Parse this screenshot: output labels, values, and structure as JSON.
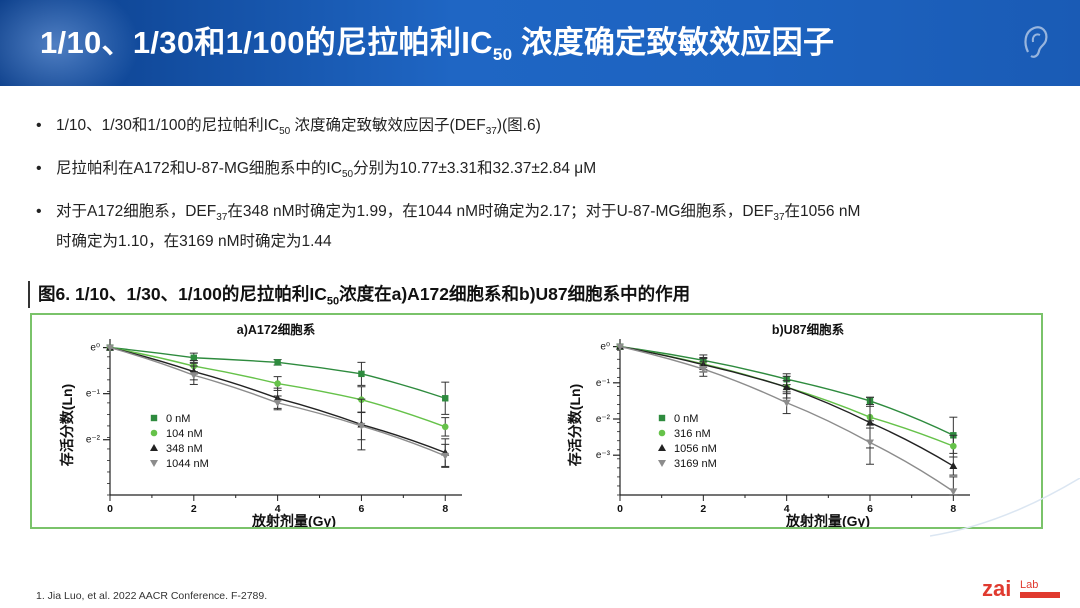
{
  "header": {
    "title_main": "1/10、1/30和1/100的尼拉帕利IC",
    "title_sub": "50",
    "title_rest": " 浓度确定致敏效应因子"
  },
  "bullets": [
    {
      "a": "1/10、1/30和1/100的尼拉帕利IC",
      "a_sub": "50",
      "b": " 浓度确定致敏效应因子(DEF",
      "b_sub": "37",
      "c": ")(图.6)"
    },
    {
      "a": "尼拉帕利在A172和U-87-MG细胞系中的IC",
      "a_sub": "50",
      "b": "分别为10.77±3.31和32.37±2.84 μM"
    },
    {
      "a": "对于A172细胞系，DEF",
      "a_sub": "37",
      "b": "在348 nM时确定为1.99，在1044 nM时确定为2.17；对于U-87-MG细胞系，DEF",
      "b_sub": "37",
      "c": "在1056 nM",
      "d": "时确定为1.10，在3169 nM时确定为1.44"
    }
  ],
  "figure": {
    "caption_a": "图6. 1/10、1/30、1/100的尼拉帕利IC",
    "caption_sub": "50",
    "caption_b": "浓度在a)A172细胞系和b)U87细胞系中的作用"
  },
  "footnote": "1.   Jia Luo, et al. 2022 AACR Conference. F-2789.",
  "logo": {
    "text": "zai",
    "text_small": "Lab"
  },
  "colors": {
    "green_dark": "#2e8b3e",
    "green_light": "#66c24a",
    "black": "#222222",
    "gray": "#8c8c8c",
    "header_blue": "#1f66c4",
    "logo_red": "#e03a2f"
  },
  "chart_data": [
    {
      "type": "line",
      "title": "a)A172细胞系",
      "xlabel": "放射剂量(Gy)",
      "ylabel": "存活分数(Ln)",
      "y_scale": "ln",
      "x_ticks": [
        0,
        2,
        4,
        6,
        8
      ],
      "y_ticks": [
        {
          "v": 0,
          "label": "e⁰"
        },
        {
          "v": -1,
          "label": "e⁻¹"
        },
        {
          "v": -2,
          "label": "e⁻²"
        }
      ],
      "xlim": [
        0,
        8.4
      ],
      "ylim": [
        -3.2,
        0.1
      ],
      "legend_position": "bottom-left",
      "series": [
        {
          "name": "0 nM",
          "marker": "square",
          "color_key": "green_dark",
          "x": [
            0,
            2,
            4,
            6,
            8
          ],
          "y": [
            0,
            -0.22,
            -0.32,
            -0.57,
            -1.1
          ],
          "err": [
            0,
            0.1,
            0.06,
            0.25,
            0.35
          ]
        },
        {
          "name": "104 nM",
          "marker": "circle",
          "color_key": "green_light",
          "x": [
            0,
            2,
            4,
            6,
            8
          ],
          "y": [
            0,
            -0.4,
            -0.78,
            -1.13,
            -1.72
          ],
          "err": [
            0,
            0.12,
            0.15,
            0.28,
            0.2
          ]
        },
        {
          "name": "348 nM",
          "marker": "triangle",
          "color_key": "black",
          "x": [
            0,
            2,
            4,
            6,
            8
          ],
          "y": [
            0,
            -0.52,
            -1.1,
            -1.67,
            -2.28
          ],
          "err": [
            0,
            0.18,
            0.22,
            0.55,
            0.3
          ]
        },
        {
          "name": "1044 nM",
          "marker": "triangle-down",
          "color_key": "gray",
          "x": [
            0,
            2,
            4,
            6,
            8
          ],
          "y": [
            0,
            -0.6,
            -1.2,
            -1.7,
            -2.35
          ],
          "err": [
            0,
            0.2,
            0.15,
            0.3,
            0.25
          ]
        }
      ]
    },
    {
      "type": "line",
      "title": "b)U87细胞系",
      "xlabel": "放射剂量(Gy)",
      "ylabel": "存活分数(Ln)",
      "y_scale": "ln",
      "x_ticks": [
        0,
        2,
        4,
        6,
        8
      ],
      "y_ticks": [
        {
          "v": 0,
          "label": "e⁰"
        },
        {
          "v": -1,
          "label": "e⁻¹"
        },
        {
          "v": -2,
          "label": "e⁻²"
        },
        {
          "v": -3,
          "label": "e⁻³"
        }
      ],
      "xlim": [
        0,
        8.4
      ],
      "ylim": [
        -4.1,
        0.1
      ],
      "legend_position": "bottom-left",
      "series": [
        {
          "name": "0 nM",
          "marker": "square",
          "color_key": "green_dark",
          "x": [
            0,
            2,
            4,
            6,
            8
          ],
          "y": [
            0,
            -0.38,
            -0.9,
            -1.5,
            -2.45
          ],
          "err": [
            0,
            0.15,
            0.15,
            0.1,
            0.5
          ]
        },
        {
          "name": "316 nM",
          "marker": "circle",
          "color_key": "green_light",
          "x": [
            0,
            2,
            4,
            6,
            8
          ],
          "y": [
            0,
            -0.48,
            -1.12,
            -1.95,
            -2.75
          ],
          "err": [
            0,
            0.15,
            0.18,
            0.3,
            0.3
          ]
        },
        {
          "name": "1056 nM",
          "marker": "triangle",
          "color_key": "black",
          "x": [
            0,
            2,
            4,
            6,
            8
          ],
          "y": [
            0,
            -0.5,
            -1.12,
            -2.1,
            -3.3
          ],
          "err": [
            0,
            0.2,
            0.3,
            0.7,
            0.25
          ]
        },
        {
          "name": "3169 nM",
          "marker": "triangle-down",
          "color_key": "gray",
          "x": [
            0,
            2,
            4,
            6,
            8
          ],
          "y": [
            0,
            -0.62,
            -1.55,
            -2.65,
            -4.0
          ],
          "err": [
            0,
            0.2,
            0.3,
            0.6,
            0.4
          ]
        }
      ]
    }
  ]
}
